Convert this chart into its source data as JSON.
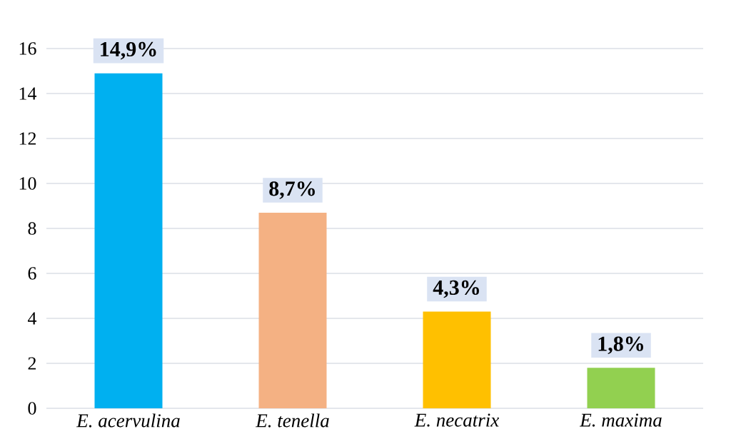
{
  "chart_data": {
    "type": "bar",
    "categories": [
      "E. acervulina",
      "E. tenella",
      "E. necatrix",
      "E. maxima"
    ],
    "values": [
      14.9,
      8.7,
      4.3,
      1.8
    ],
    "colors": [
      "#00b0f0",
      "#f4b183",
      "#ffc000",
      "#92d050"
    ],
    "value_labels": [
      "14,9%",
      "8,7%",
      "4,3%",
      "1,8%"
    ],
    "ylim": [
      0,
      16
    ],
    "yticks": [
      0,
      2,
      4,
      6,
      8,
      10,
      12,
      14,
      16
    ],
    "grid": "y"
  }
}
